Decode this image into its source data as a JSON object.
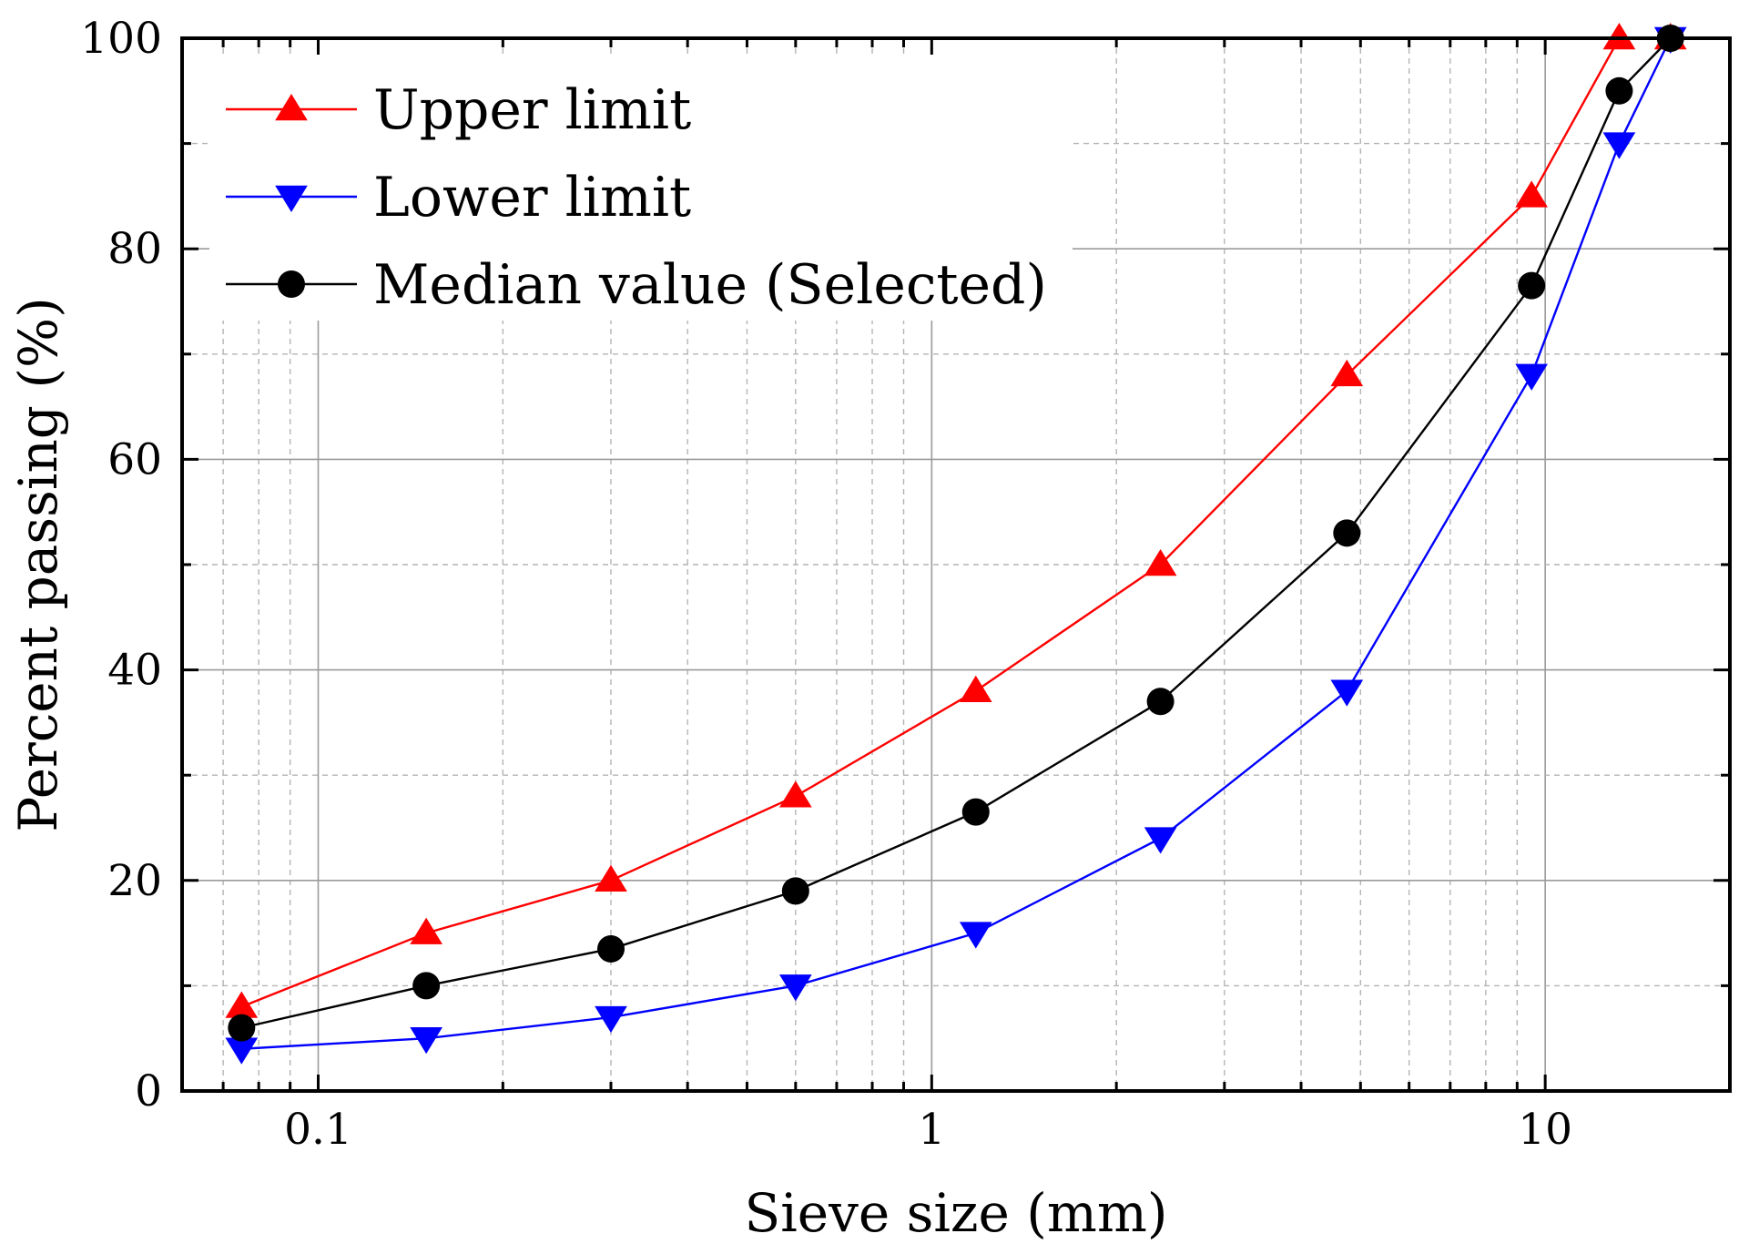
{
  "chart_data": {
    "type": "line",
    "title": "",
    "xlabel": "Sieve size (mm)",
    "ylabel": "Percent passing (%)",
    "xscale": "log",
    "xlim": [
      0.06,
      20
    ],
    "ylim": [
      0,
      100
    ],
    "xticks": [
      0.1,
      1,
      10
    ],
    "xtick_labels": [
      "0.1",
      "1",
      "10"
    ],
    "yticks": [
      0,
      20,
      40,
      60,
      80,
      100
    ],
    "ytick_labels": [
      "0",
      "20",
      "40",
      "60",
      "80",
      "100"
    ],
    "grid": true,
    "legend_position": "top-left",
    "x": [
      0.075,
      0.15,
      0.3,
      0.6,
      1.18,
      2.36,
      4.75,
      9.5,
      13.2,
      16
    ],
    "series": [
      {
        "name": "Upper limit",
        "color": "#ff0000",
        "marker": "triangle-up",
        "values": [
          8,
          15,
          20,
          28,
          38,
          50,
          68,
          85,
          100,
          100
        ]
      },
      {
        "name": "Lower limit",
        "color": "#0000ff",
        "marker": "triangle-down",
        "values": [
          4,
          5,
          7,
          10,
          15,
          24,
          38,
          68,
          90,
          100
        ]
      },
      {
        "name": "Median value (Selected)",
        "color": "#000000",
        "marker": "circle",
        "values": [
          6,
          10,
          13.5,
          19,
          26.5,
          37,
          53,
          76.5,
          95,
          100
        ]
      }
    ]
  }
}
